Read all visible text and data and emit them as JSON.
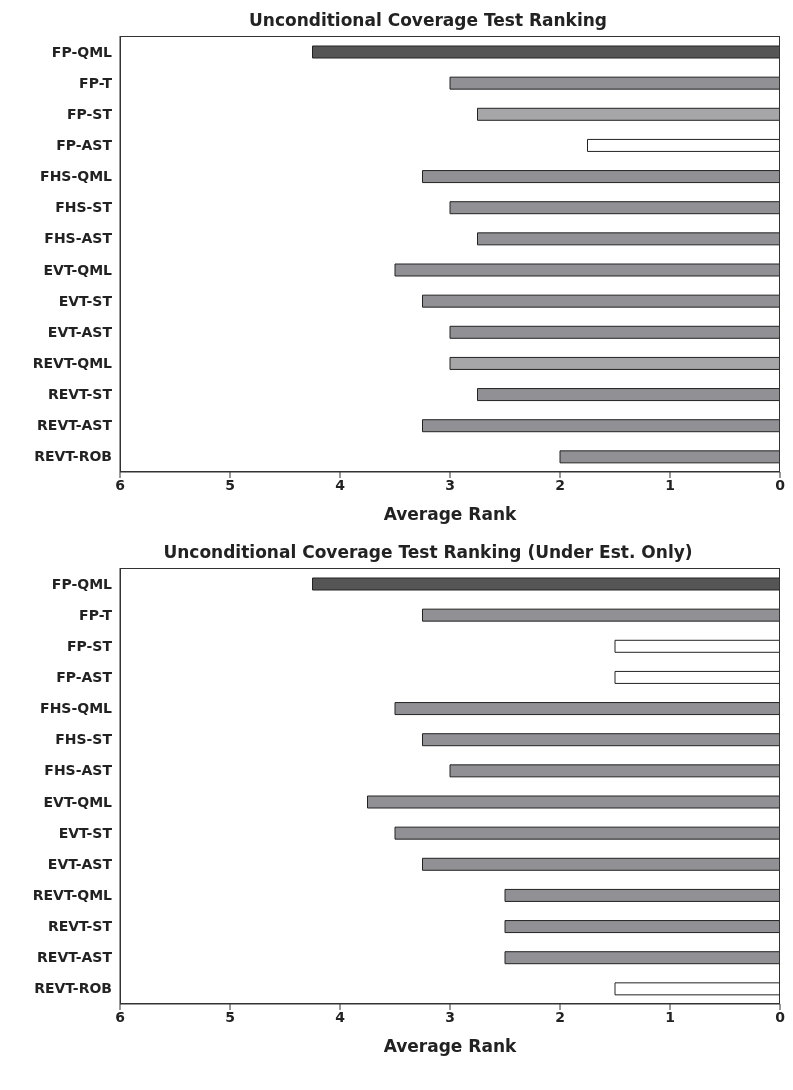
{
  "chart_data": [
    {
      "type": "bar",
      "orientation": "horizontal",
      "title": "Unconditional Coverage Test Ranking",
      "xlabel": "Average Rank",
      "categories": [
        "FP-QML",
        "FP-T",
        "FP-ST",
        "FP-AST",
        "FHS-QML",
        "FHS-ST",
        "FHS-AST",
        "EVT-QML",
        "EVT-ST",
        "EVT-AST",
        "REVT-QML",
        "REVT-ST",
        "REVT-AST",
        "REVT-ROB"
      ],
      "values": [
        4.25,
        3,
        2.75,
        1.75,
        3.25,
        3,
        2.75,
        3.5,
        3.25,
        3,
        3,
        2.75,
        3.25,
        2
      ],
      "colors": [
        "#555555",
        "#909095",
        "#a6a6a8",
        "#ffffff",
        "#909095",
        "#909095",
        "#909095",
        "#909095",
        "#909095",
        "#909095",
        "#a6a6a8",
        "#909095",
        "#909095",
        "#909095"
      ],
      "xlim": [
        6,
        0
      ],
      "xticks": [
        6,
        5,
        4,
        3,
        2,
        1,
        0
      ]
    },
    {
      "type": "bar",
      "orientation": "horizontal",
      "title": "Unconditional Coverage Test Ranking (Under Est. Only)",
      "xlabel": "Average Rank",
      "categories": [
        "FP-QML",
        "FP-T",
        "FP-ST",
        "FP-AST",
        "FHS-QML",
        "FHS-ST",
        "FHS-AST",
        "EVT-QML",
        "EVT-ST",
        "EVT-AST",
        "REVT-QML",
        "REVT-ST",
        "REVT-AST",
        "REVT-ROB"
      ],
      "values": [
        4.25,
        3.25,
        1.5,
        1.5,
        3.5,
        3.25,
        3,
        3.75,
        3.5,
        3.25,
        2.5,
        2.5,
        2.5,
        1.5
      ],
      "colors": [
        "#555555",
        "#909095",
        "#ffffff",
        "#ffffff",
        "#909095",
        "#909095",
        "#909095",
        "#909095",
        "#909095",
        "#909095",
        "#909095",
        "#909095",
        "#909095",
        "#ffffff"
      ],
      "xlim": [
        6,
        0
      ],
      "xticks": [
        6,
        5,
        4,
        3,
        2,
        1,
        0
      ]
    }
  ]
}
